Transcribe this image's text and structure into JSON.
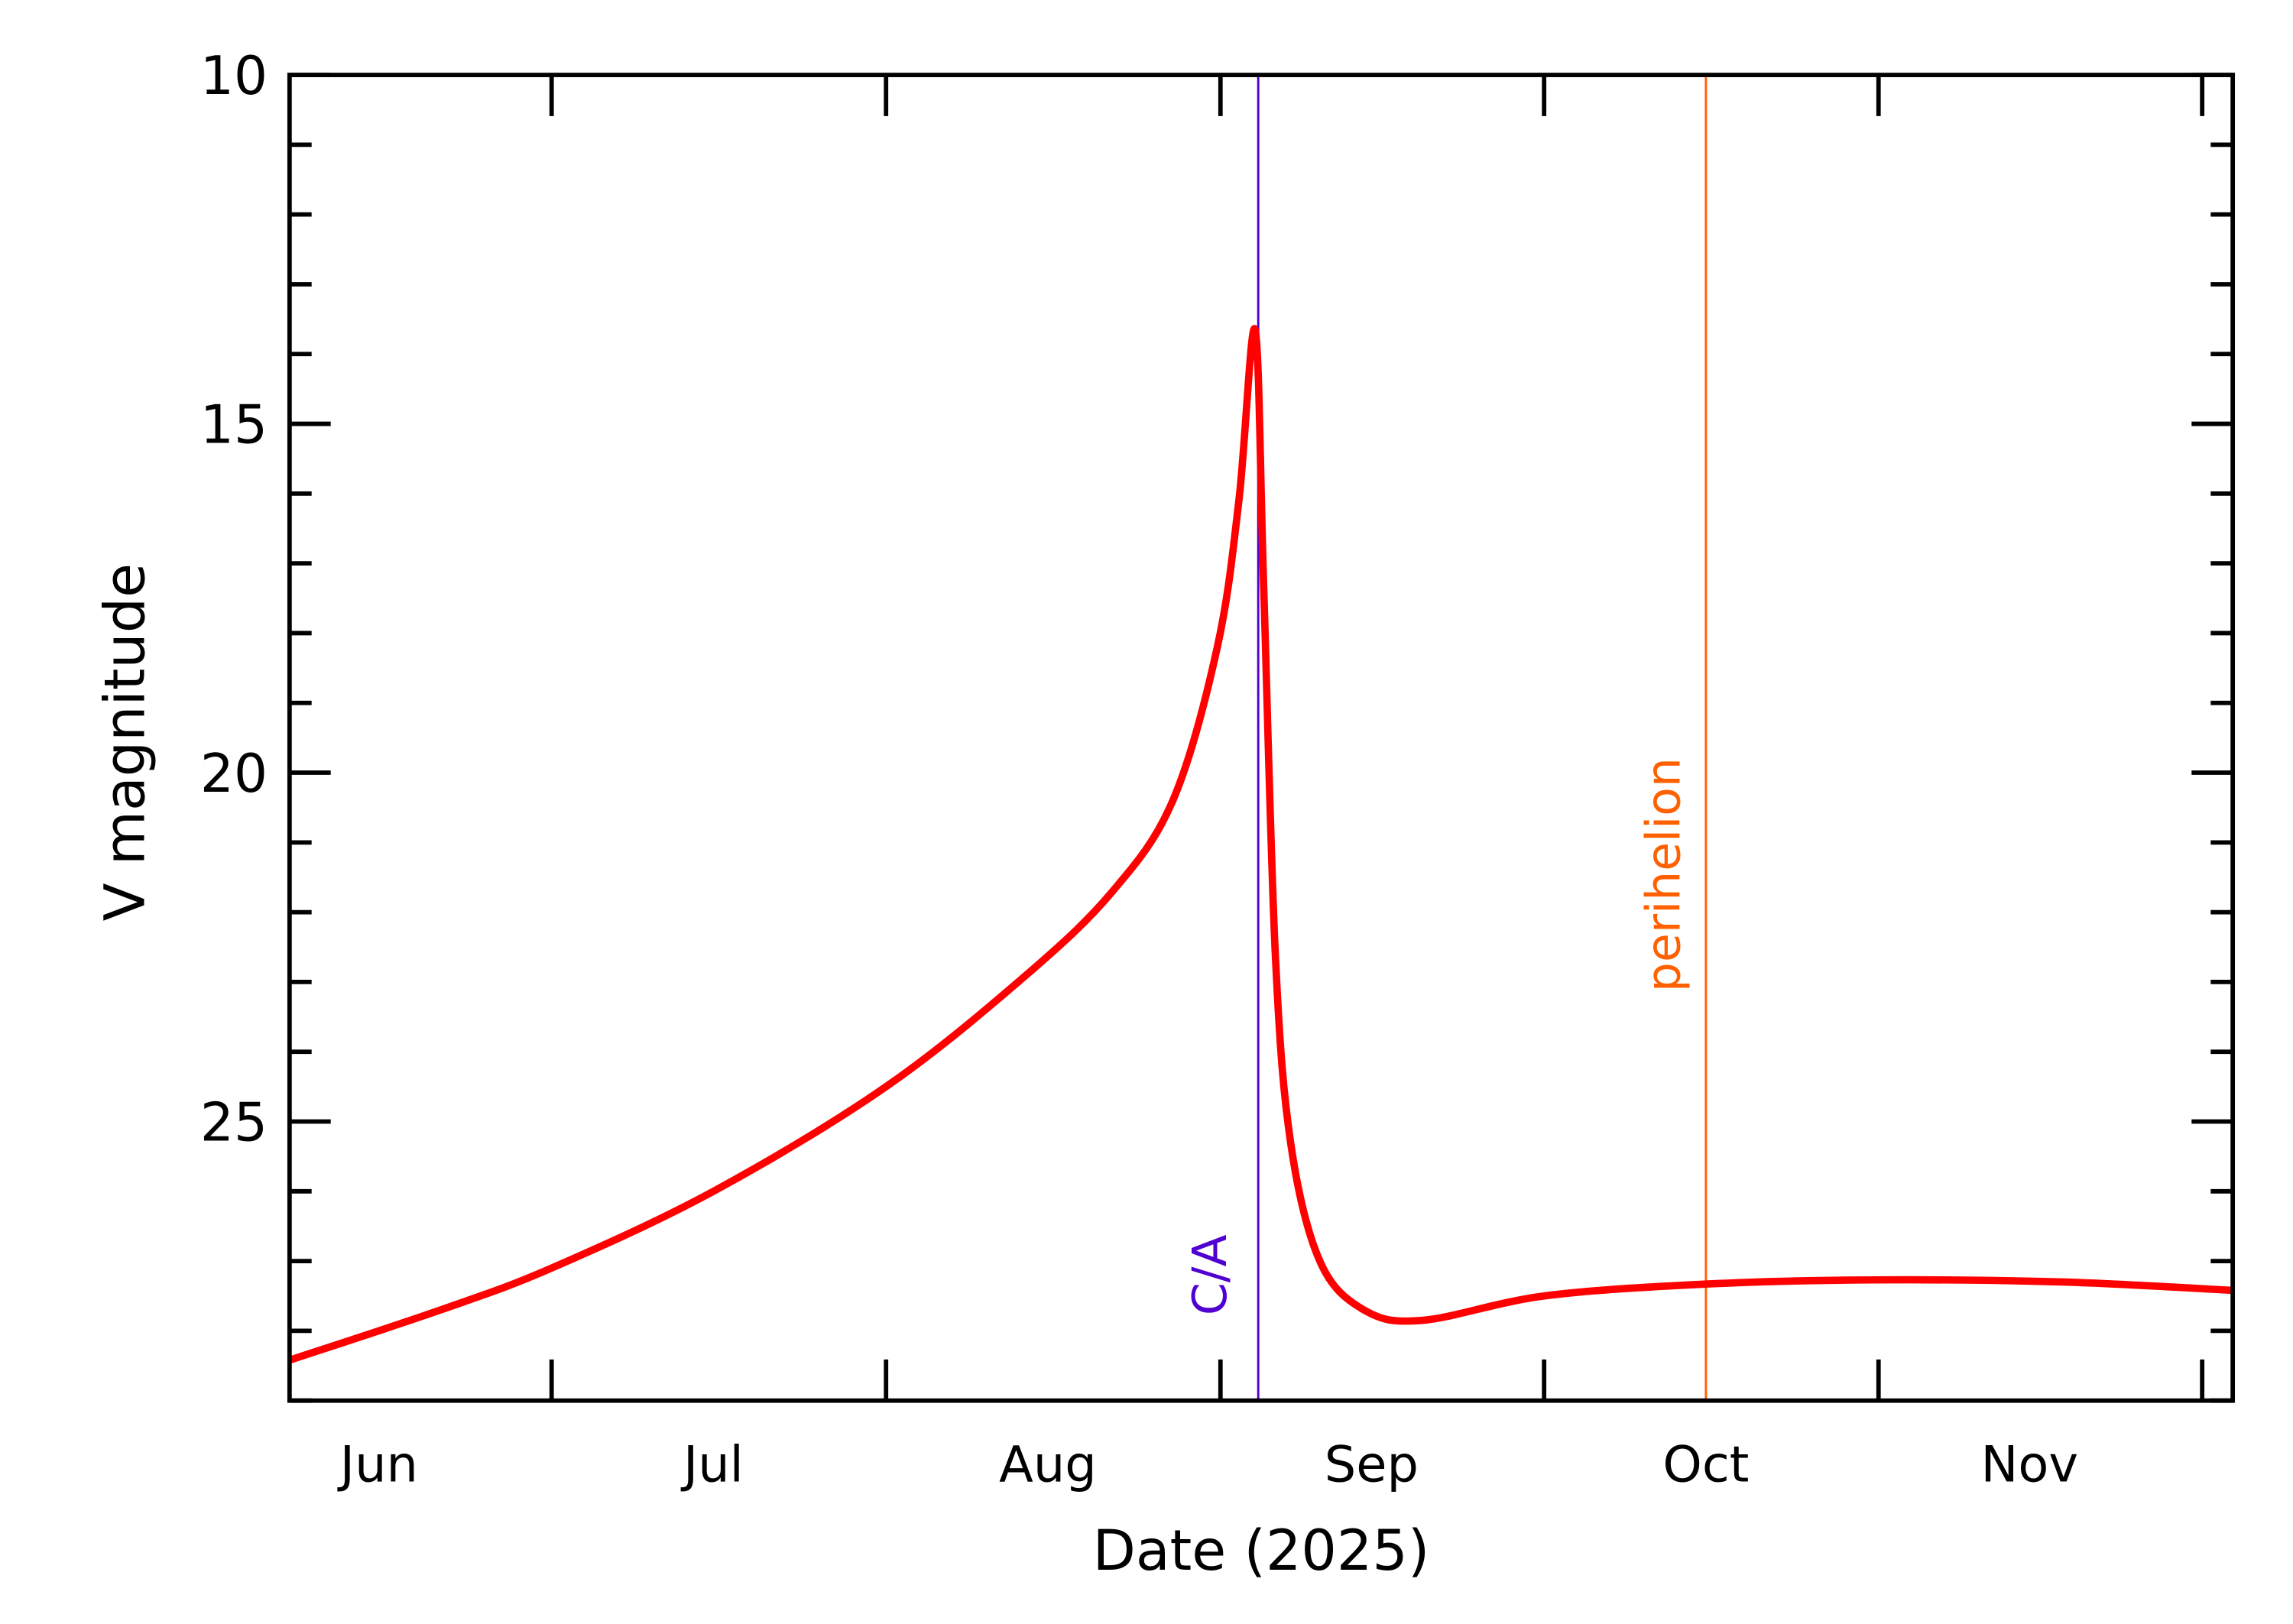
{
  "chart_data": {
    "type": "line",
    "title": "",
    "xlabel": "Date (2025)",
    "ylabel": "V magnitude",
    "xlim": [
      "2025-06-06T17:00",
      "2025-12-03T20:00"
    ],
    "ylim": [
      10,
      29
    ],
    "y_inverted": true,
    "grid": false,
    "y_major_ticks": [
      10,
      15,
      20,
      25
    ],
    "y_minor_step": 1,
    "x_major_ticks": [
      "2025-07-01",
      "2025-08-01",
      "2025-09-01",
      "2025-10-01",
      "2025-11-01",
      "2025-12-01"
    ],
    "x_tick_labels": [
      {
        "label": "Jun",
        "at": "2025-06-15"
      },
      {
        "label": "Jul",
        "at": "2025-07-16"
      },
      {
        "label": "Aug",
        "at": "2025-08-16"
      },
      {
        "label": "Sep",
        "at": "2025-09-15"
      },
      {
        "label": "Oct",
        "at": "2025-10-16"
      },
      {
        "label": "Nov",
        "at": "2025-11-15"
      }
    ],
    "series": [
      {
        "color": "#ff0000",
        "points": [
          [
            "2025-06-06T17:00",
            28.42
          ],
          [
            "2025-06-20T17:00",
            27.7
          ],
          [
            "2025-07-01T00:00",
            27.1
          ],
          [
            "2025-07-16T00:00",
            26.0
          ],
          [
            "2025-08-01T00:00",
            24.5
          ],
          [
            "2025-08-14T00:00",
            22.9
          ],
          [
            "2025-08-22T00:00",
            21.7
          ],
          [
            "2025-08-27T14:00",
            20.4
          ],
          [
            "2025-08-31T17:00",
            18.2
          ],
          [
            "2025-09-02T17:00",
            16.1
          ],
          [
            "2025-09-04T05:00",
            13.65
          ],
          [
            "2025-09-05T00:00",
            17.3
          ],
          [
            "2025-09-06T02:00",
            22.6
          ],
          [
            "2025-09-07T12:00",
            25.3
          ],
          [
            "2025-09-10T05:00",
            27.0
          ],
          [
            "2025-09-14T07:00",
            27.7
          ],
          [
            "2025-09-19T17:00",
            27.85
          ],
          [
            "2025-10-01T00:00",
            27.5
          ],
          [
            "2025-10-16T00:00",
            27.33
          ],
          [
            "2025-10-31T12:00",
            27.27
          ],
          [
            "2025-11-18T00:00",
            27.3
          ],
          [
            "2025-12-03T20:00",
            27.42
          ]
        ]
      }
    ],
    "annotations": [
      {
        "label": "C/A",
        "date": "2025-09-04T12:00",
        "color": "#5000d0"
      },
      {
        "label": "perihelion",
        "date": "2025-10-16T00:00",
        "color": "#ff6000"
      }
    ]
  }
}
